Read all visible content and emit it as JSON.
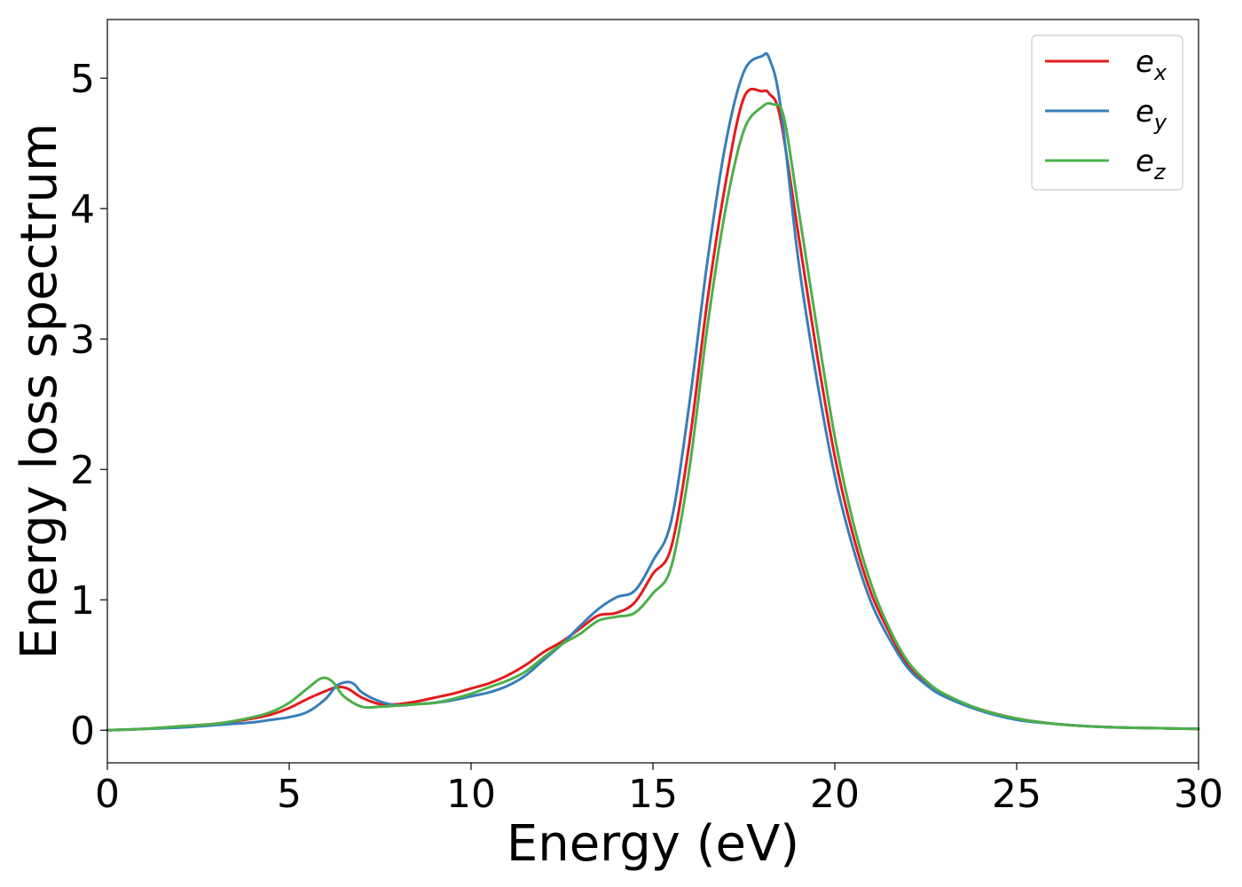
{
  "chart_data": {
    "type": "line",
    "xlabel": "Energy (eV)",
    "ylabel": "Energy loss spectrum",
    "xlim": [
      0,
      30
    ],
    "ylim": [
      -0.25,
      5.45
    ],
    "xticks": [
      0,
      5,
      10,
      15,
      20,
      25,
      30
    ],
    "yticks": [
      0,
      1,
      2,
      3,
      4,
      5
    ],
    "xtick_labels": [
      "0",
      "5",
      "10",
      "15",
      "20",
      "25",
      "30"
    ],
    "ytick_labels": [
      "0",
      "1",
      "2",
      "3",
      "4",
      "5"
    ],
    "grid": false,
    "legend_position": "top-right",
    "series": [
      {
        "name": "ex",
        "legend_base": "e",
        "legend_sub": "x",
        "color": "#e41a1c",
        "x": [
          0,
          1,
          2,
          3,
          4,
          4.5,
          5,
          5.5,
          6,
          6.3,
          6.6,
          7,
          7.5,
          8,
          8.5,
          9,
          9.5,
          10,
          10.5,
          11,
          11.5,
          12,
          12.5,
          13,
          13.5,
          14,
          14.5,
          15,
          15.5,
          16,
          16.5,
          17,
          17.5,
          18,
          18.2,
          18.5,
          19,
          19.5,
          20,
          20.5,
          21,
          21.5,
          22,
          22.5,
          23,
          24,
          25,
          26,
          27,
          28,
          29,
          30
        ],
        "y": [
          0,
          0.01,
          0.03,
          0.05,
          0.09,
          0.12,
          0.17,
          0.24,
          0.3,
          0.33,
          0.32,
          0.25,
          0.2,
          0.2,
          0.22,
          0.25,
          0.28,
          0.32,
          0.36,
          0.42,
          0.5,
          0.6,
          0.68,
          0.78,
          0.88,
          0.9,
          0.98,
          1.2,
          1.4,
          2.2,
          3.3,
          4.2,
          4.85,
          4.9,
          4.88,
          4.7,
          3.8,
          2.9,
          2.1,
          1.5,
          1.05,
          0.75,
          0.5,
          0.36,
          0.27,
          0.16,
          0.09,
          0.05,
          0.03,
          0.02,
          0.015,
          0.01
        ]
      },
      {
        "name": "ey",
        "legend_base": "e",
        "legend_sub": "y",
        "color": "#377eb8",
        "x": [
          0,
          1,
          2,
          3,
          4,
          4.5,
          5,
          5.5,
          6,
          6.3,
          6.6,
          6.8,
          7,
          7.5,
          8,
          8.5,
          9,
          9.5,
          10,
          10.5,
          11,
          11.5,
          12,
          12.5,
          13,
          13.5,
          14,
          14.5,
          15,
          15.5,
          16,
          16.5,
          17,
          17.5,
          18,
          18.2,
          18.5,
          19,
          19.5,
          20,
          20.5,
          21,
          21.5,
          22,
          22.5,
          23,
          24,
          25,
          26,
          27,
          28,
          29,
          30
        ],
        "y": [
          0,
          0.01,
          0.02,
          0.04,
          0.06,
          0.08,
          0.1,
          0.14,
          0.24,
          0.34,
          0.37,
          0.35,
          0.29,
          0.22,
          0.19,
          0.2,
          0.21,
          0.23,
          0.26,
          0.29,
          0.34,
          0.42,
          0.54,
          0.66,
          0.8,
          0.93,
          1.02,
          1.07,
          1.3,
          1.6,
          2.5,
          3.6,
          4.5,
          5.05,
          5.17,
          5.15,
          4.8,
          3.6,
          2.7,
          1.95,
          1.4,
          0.98,
          0.7,
          0.48,
          0.35,
          0.26,
          0.15,
          0.08,
          0.05,
          0.03,
          0.02,
          0.015,
          0.01
        ]
      },
      {
        "name": "ez",
        "legend_base": "e",
        "legend_sub": "z",
        "color": "#4daf4a",
        "x": [
          0,
          1,
          2,
          3,
          4,
          4.5,
          5,
          5.5,
          5.9,
          6.2,
          6.5,
          7,
          7.5,
          8,
          8.5,
          9,
          9.5,
          10,
          10.5,
          11,
          11.5,
          12,
          12.5,
          13,
          13.5,
          14,
          14.5,
          15,
          15.5,
          16,
          16.5,
          17,
          17.5,
          18,
          18.3,
          18.6,
          19,
          19.5,
          20,
          20.5,
          21,
          21.5,
          22,
          22.5,
          23,
          24,
          25,
          26,
          27,
          28,
          29,
          30
        ],
        "y": [
          0,
          0.01,
          0.03,
          0.05,
          0.1,
          0.14,
          0.21,
          0.32,
          0.4,
          0.37,
          0.26,
          0.18,
          0.18,
          0.19,
          0.2,
          0.21,
          0.24,
          0.28,
          0.33,
          0.38,
          0.45,
          0.56,
          0.66,
          0.74,
          0.84,
          0.87,
          0.9,
          1.05,
          1.25,
          2.0,
          3.1,
          4.0,
          4.6,
          4.78,
          4.8,
          4.7,
          4.0,
          3.1,
          2.25,
          1.6,
          1.12,
          0.78,
          0.53,
          0.38,
          0.28,
          0.16,
          0.09,
          0.05,
          0.03,
          0.02,
          0.015,
          0.01
        ]
      }
    ]
  }
}
